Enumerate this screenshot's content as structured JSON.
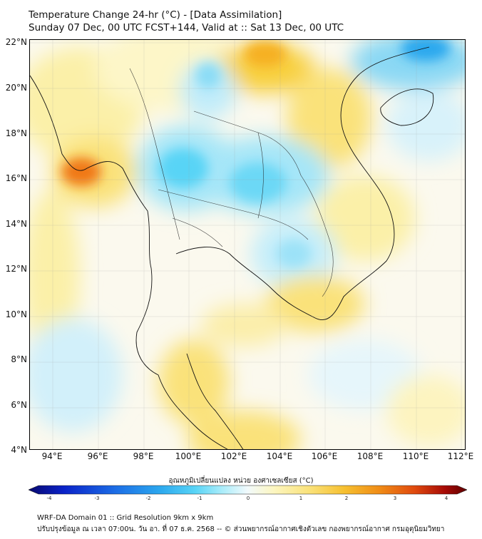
{
  "header": {
    "title": "Temperature Change 24-hr (°C) - [Data Assimilation]",
    "subtitle": "Sunday 07 Dec, 00 UTC FCST+144, Valid at :: Sat 13 Dec, 00 UTC"
  },
  "axes": {
    "lat_labels": [
      "22°N",
      "20°N",
      "18°N",
      "16°N",
      "14°N",
      "12°N",
      "10°N",
      "8°N",
      "6°N",
      "4°N"
    ],
    "lon_labels": [
      "94°E",
      "96°E",
      "98°E",
      "100°E",
      "102°E",
      "104°E",
      "106°E",
      "108°E",
      "110°E",
      "112°E"
    ]
  },
  "colorbar": {
    "title": "อุณหภูมิเปลี่ยนแปลง หน่วย องศาเซลเซียส (°C)",
    "ticks": [
      "-4",
      "-3",
      "-2",
      "-1",
      "0",
      "1",
      "2",
      "3",
      "4"
    ],
    "colors": [
      "#08086e",
      "#0a22c8",
      "#1c6ee6",
      "#2ca8ee",
      "#58d4f6",
      "#a8ecfa",
      "#e6f8fc",
      "#fcfce0",
      "#fcf0a0",
      "#fadc46",
      "#f6b022",
      "#f07812",
      "#de3c0c",
      "#a60a06",
      "#5e0000"
    ]
  },
  "footer": {
    "line1": "WRF-DA Domain 01 :: Grid Resolution 9km x 9km",
    "line2": "ปรับปรุงข้อมูล ณ เวลา 07:00น. วัน อา. ที่ 07 ธ.ค. 2568 -- © ส่วนพยากรณ์อากาศเชิงตัวเลข กองพยากรณ์อากาศ กรมอุตุนิยมวิทยา"
  }
}
